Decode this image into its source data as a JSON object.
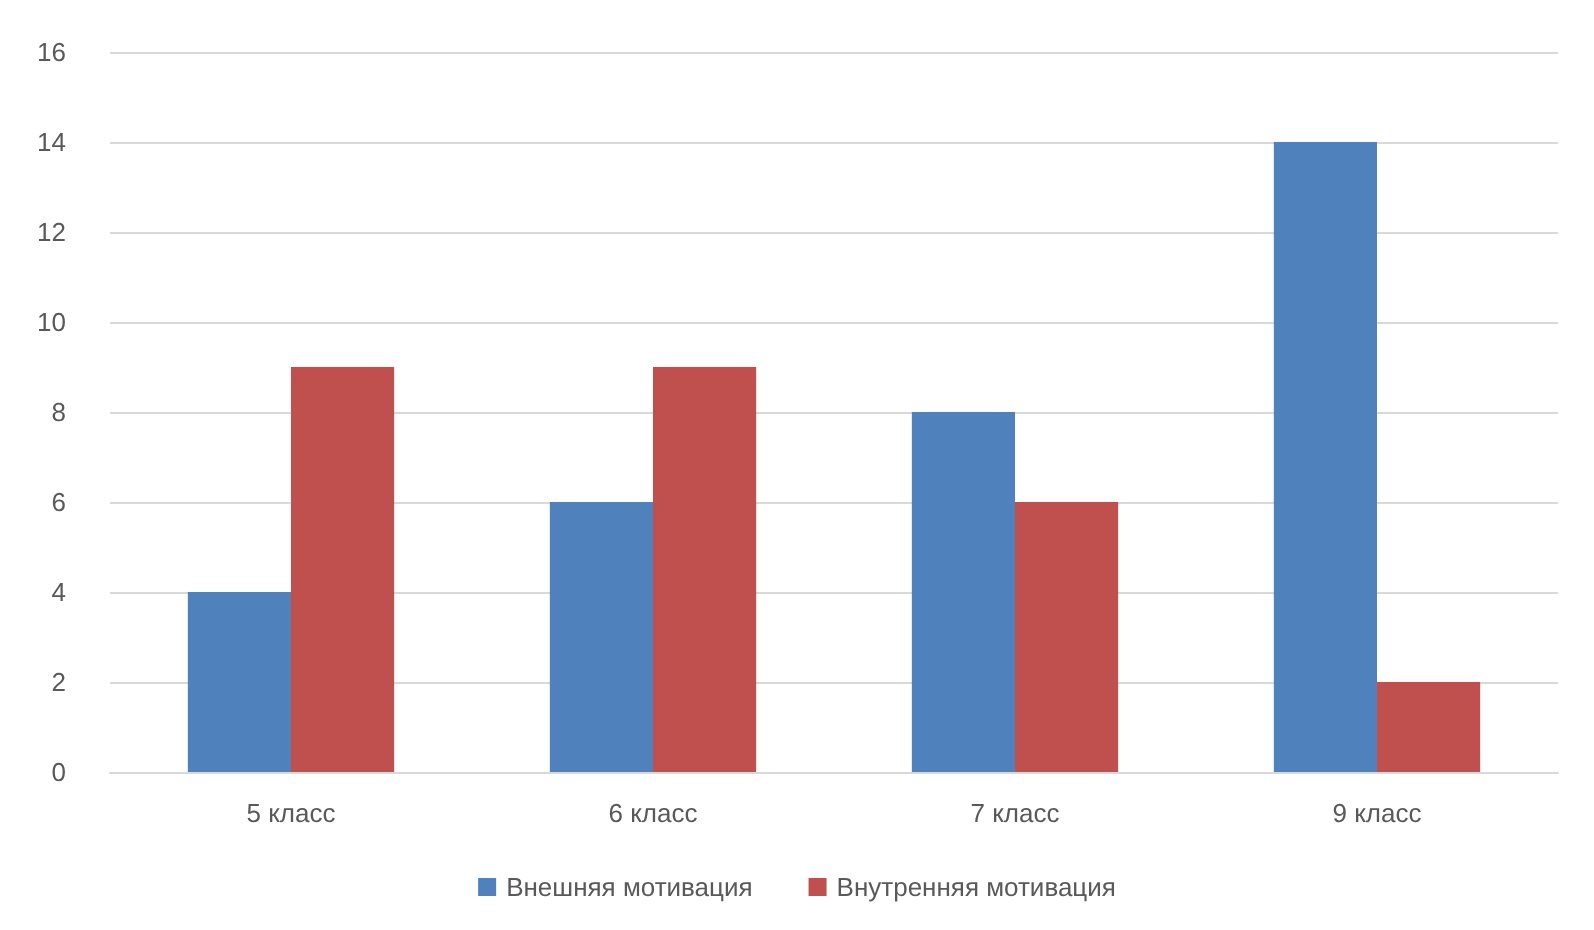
{
  "chart_data": {
    "type": "bar",
    "categories": [
      "5 класс",
      "6 класс",
      "7 класс",
      "9 класс"
    ],
    "series": [
      {
        "name": "Внешняя мотивация",
        "color": "#4f81bd",
        "values": [
          4,
          6,
          8,
          14
        ]
      },
      {
        "name": "Внутренняя мотивация",
        "color": "#c0504d",
        "values": [
          9,
          9,
          6,
          2
        ]
      }
    ],
    "ylim": [
      0,
      16
    ],
    "yticks": [
      0,
      2,
      4,
      6,
      8,
      10,
      12,
      14,
      16
    ],
    "grid": "y",
    "legend": "bottom"
  }
}
